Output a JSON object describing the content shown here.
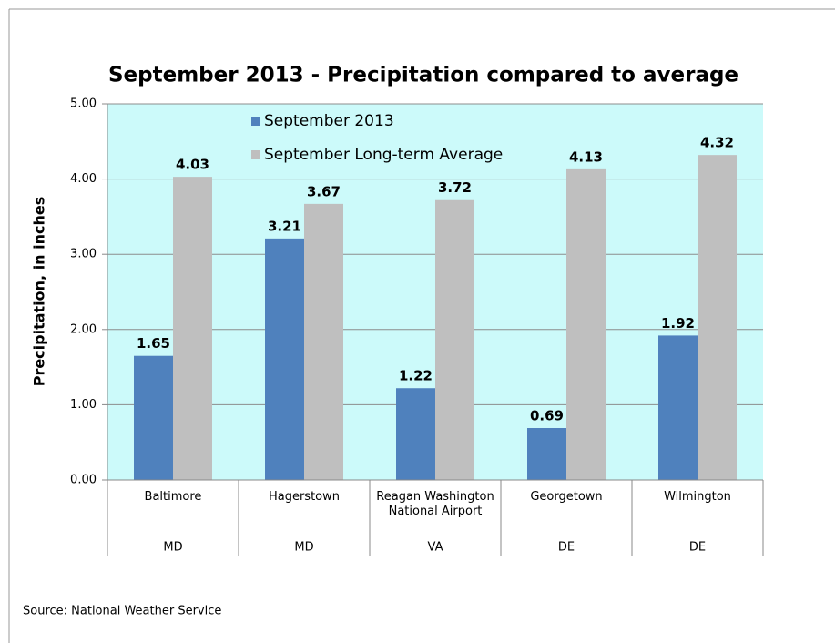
{
  "chart_data": {
    "type": "bar",
    "title": "September 2013 - Precipitation compared to average",
    "y_label": "Precipitation, in inches",
    "categories": [
      "Baltimore",
      "Hagerstown",
      "Reagan Washington National Airport",
      "Georgetown",
      "Wilmington"
    ],
    "category_groups": [
      "MD",
      "MD",
      "VA",
      "DE",
      "DE"
    ],
    "series": [
      {
        "name": "September 2013",
        "color": "#4f81bd",
        "label_color": "#2e75b6",
        "values": [
          1.65,
          3.21,
          1.22,
          0.69,
          1.92
        ]
      },
      {
        "name": "September Long-term Average",
        "color": "#bfbfbf",
        "label_color": "#000000",
        "values": [
          4.03,
          3.67,
          3.72,
          4.13,
          4.32
        ]
      }
    ],
    "ylim": [
      0,
      5
    ],
    "yticks": [
      {
        "value": 0,
        "label": "0.00"
      },
      {
        "value": 1,
        "label": "1.00"
      },
      {
        "value": 2,
        "label": "2.00"
      },
      {
        "value": 3,
        "label": "3.00"
      },
      {
        "value": 4,
        "label": "4.00"
      },
      {
        "value": 5,
        "label": "5.00"
      }
    ],
    "grid": true,
    "legend": "upper left",
    "plot_background": "#ccfafa",
    "source": "Source: National Weather Service"
  }
}
